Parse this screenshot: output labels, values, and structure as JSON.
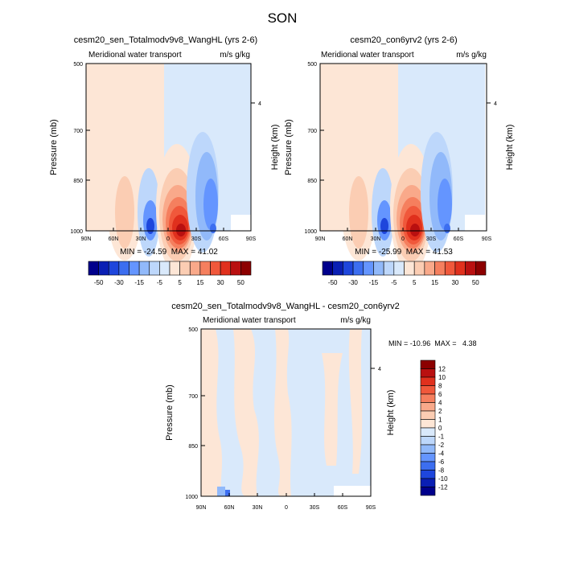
{
  "page": {
    "title": "SON"
  },
  "colors": {
    "neg": [
      "#00008c",
      "#0a1fb4",
      "#1e46dc",
      "#3c6ef0",
      "#6495ff",
      "#91b9fa",
      "#bdd7fb",
      "#d9e9fb"
    ],
    "pos": [
      "#fde6d6",
      "#fbcdb3",
      "#f9a98a",
      "#f57f5e",
      "#f0583b",
      "#e0301d",
      "#b91010",
      "#8c0000"
    ]
  },
  "chart_data": [
    {
      "type": "heatmap",
      "title": "cesm20_sen_Totalmodv9v8_WangHL (yrs 2-6)",
      "subtitle_left": "Meridional water transport",
      "subtitle_right": "m/s g/kg",
      "ylabel": "Pressure (mb)",
      "ylabel_right": "Height (km)",
      "x_ticks": [
        "90N",
        "60N",
        "30N",
        "0",
        "30S",
        "60S",
        "90S"
      ],
      "y_ticks": [
        "500",
        "700",
        "850",
        "1000"
      ],
      "right_ticks": [
        "4"
      ],
      "stats": "MIN = -24.59  MAX = 41.02",
      "colorbar": {
        "orientation": "horizontal",
        "labels": [
          "-50",
          "-30",
          "-15",
          "-5",
          "5",
          "15",
          "30",
          "50"
        ],
        "levels": [
          -50,
          -40,
          -30,
          -20,
          -15,
          -10,
          -5,
          -1,
          1,
          5,
          10,
          15,
          20,
          30,
          40,
          50
        ]
      }
    },
    {
      "type": "heatmap",
      "title": "cesm20_con6yrv2 (yrs 2-6)",
      "subtitle_left": "Meridional water transport",
      "subtitle_right": "m/s g/kg",
      "ylabel": "Pressure (mb)",
      "ylabel_right": "Height (km)",
      "x_ticks": [
        "90N",
        "60N",
        "30N",
        "0",
        "30S",
        "60S",
        "90S"
      ],
      "y_ticks": [
        "500",
        "700",
        "850",
        "1000"
      ],
      "right_ticks": [
        "4"
      ],
      "stats": "MIN = -25.99  MAX = 41.53",
      "colorbar": {
        "orientation": "horizontal",
        "labels": [
          "-50",
          "-30",
          "-15",
          "-5",
          "5",
          "15",
          "30",
          "50"
        ],
        "levels": [
          -50,
          -40,
          -30,
          -20,
          -15,
          -10,
          -5,
          -1,
          1,
          5,
          10,
          15,
          20,
          30,
          40,
          50
        ]
      }
    },
    {
      "type": "heatmap",
      "title": "cesm20_sen_Totalmodv9v8_WangHL - cesm20_con6yrv2",
      "subtitle_left": "Meridional water transport",
      "subtitle_right": "m/s g/kg",
      "ylabel": "Pressure (mb)",
      "ylabel_right": "Height (km)",
      "x_ticks": [
        "90N",
        "60N",
        "30N",
        "0",
        "30S",
        "60S",
        "90S"
      ],
      "y_ticks": [
        "500",
        "700",
        "850",
        "1000"
      ],
      "right_ticks": [
        "4"
      ],
      "stats": "MIN = -10.96  MAX =   4.38",
      "colorbar": {
        "orientation": "vertical",
        "labels": [
          "12",
          "10",
          "8",
          "6",
          "4",
          "2",
          "1",
          "0",
          "-1",
          "-2",
          "-4",
          "-6",
          "-8",
          "-10",
          "-12"
        ],
        "levels": [
          -12,
          -10,
          -8,
          -6,
          -4,
          -2,
          -1,
          0,
          1,
          2,
          4,
          6,
          8,
          10,
          12
        ]
      }
    }
  ]
}
